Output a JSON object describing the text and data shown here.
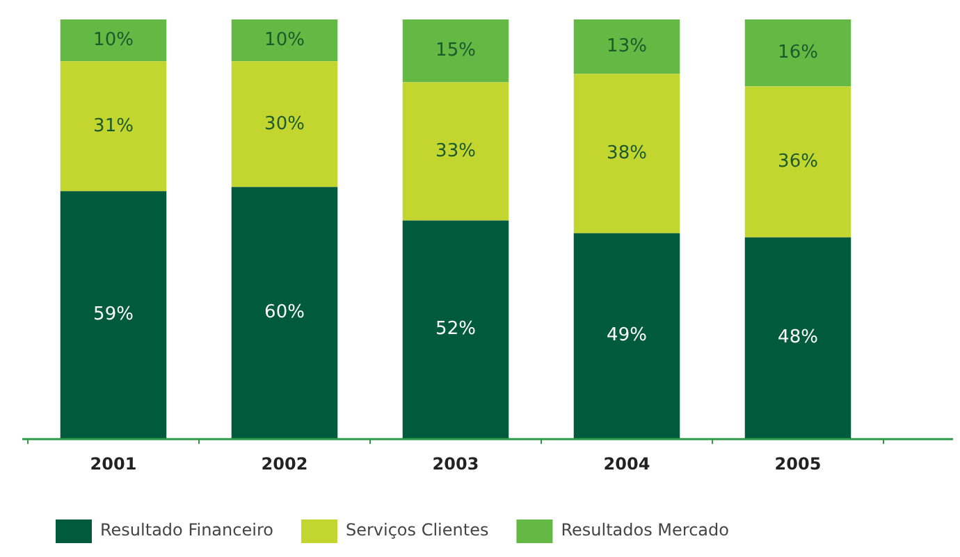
{
  "chart_data": {
    "type": "bar",
    "stacked": true,
    "categories": [
      "2001",
      "2002",
      "2003",
      "2004",
      "2005"
    ],
    "series": [
      {
        "name": "Resultado Financeiro",
        "color": "#005a3c",
        "values": [
          59,
          60,
          52,
          49,
          48
        ],
        "value_labels": [
          "59%",
          "60%",
          "52%",
          "49%",
          "48%"
        ]
      },
      {
        "name": "Serviços Clientes",
        "color": "#c3d62f",
        "values": [
          31,
          30,
          33,
          38,
          36
        ],
        "value_labels": [
          "31%",
          "30%",
          "33%",
          "38%",
          "36%"
        ]
      },
      {
        "name": "Resultados Mercado",
        "color": "#63b944",
        "values": [
          10,
          10,
          15,
          13,
          16
        ],
        "value_labels": [
          "10%",
          "10%",
          "15%",
          "13%",
          "16%"
        ]
      }
    ],
    "tick_labels": "x",
    "grid": false,
    "legend": "bottom left"
  }
}
